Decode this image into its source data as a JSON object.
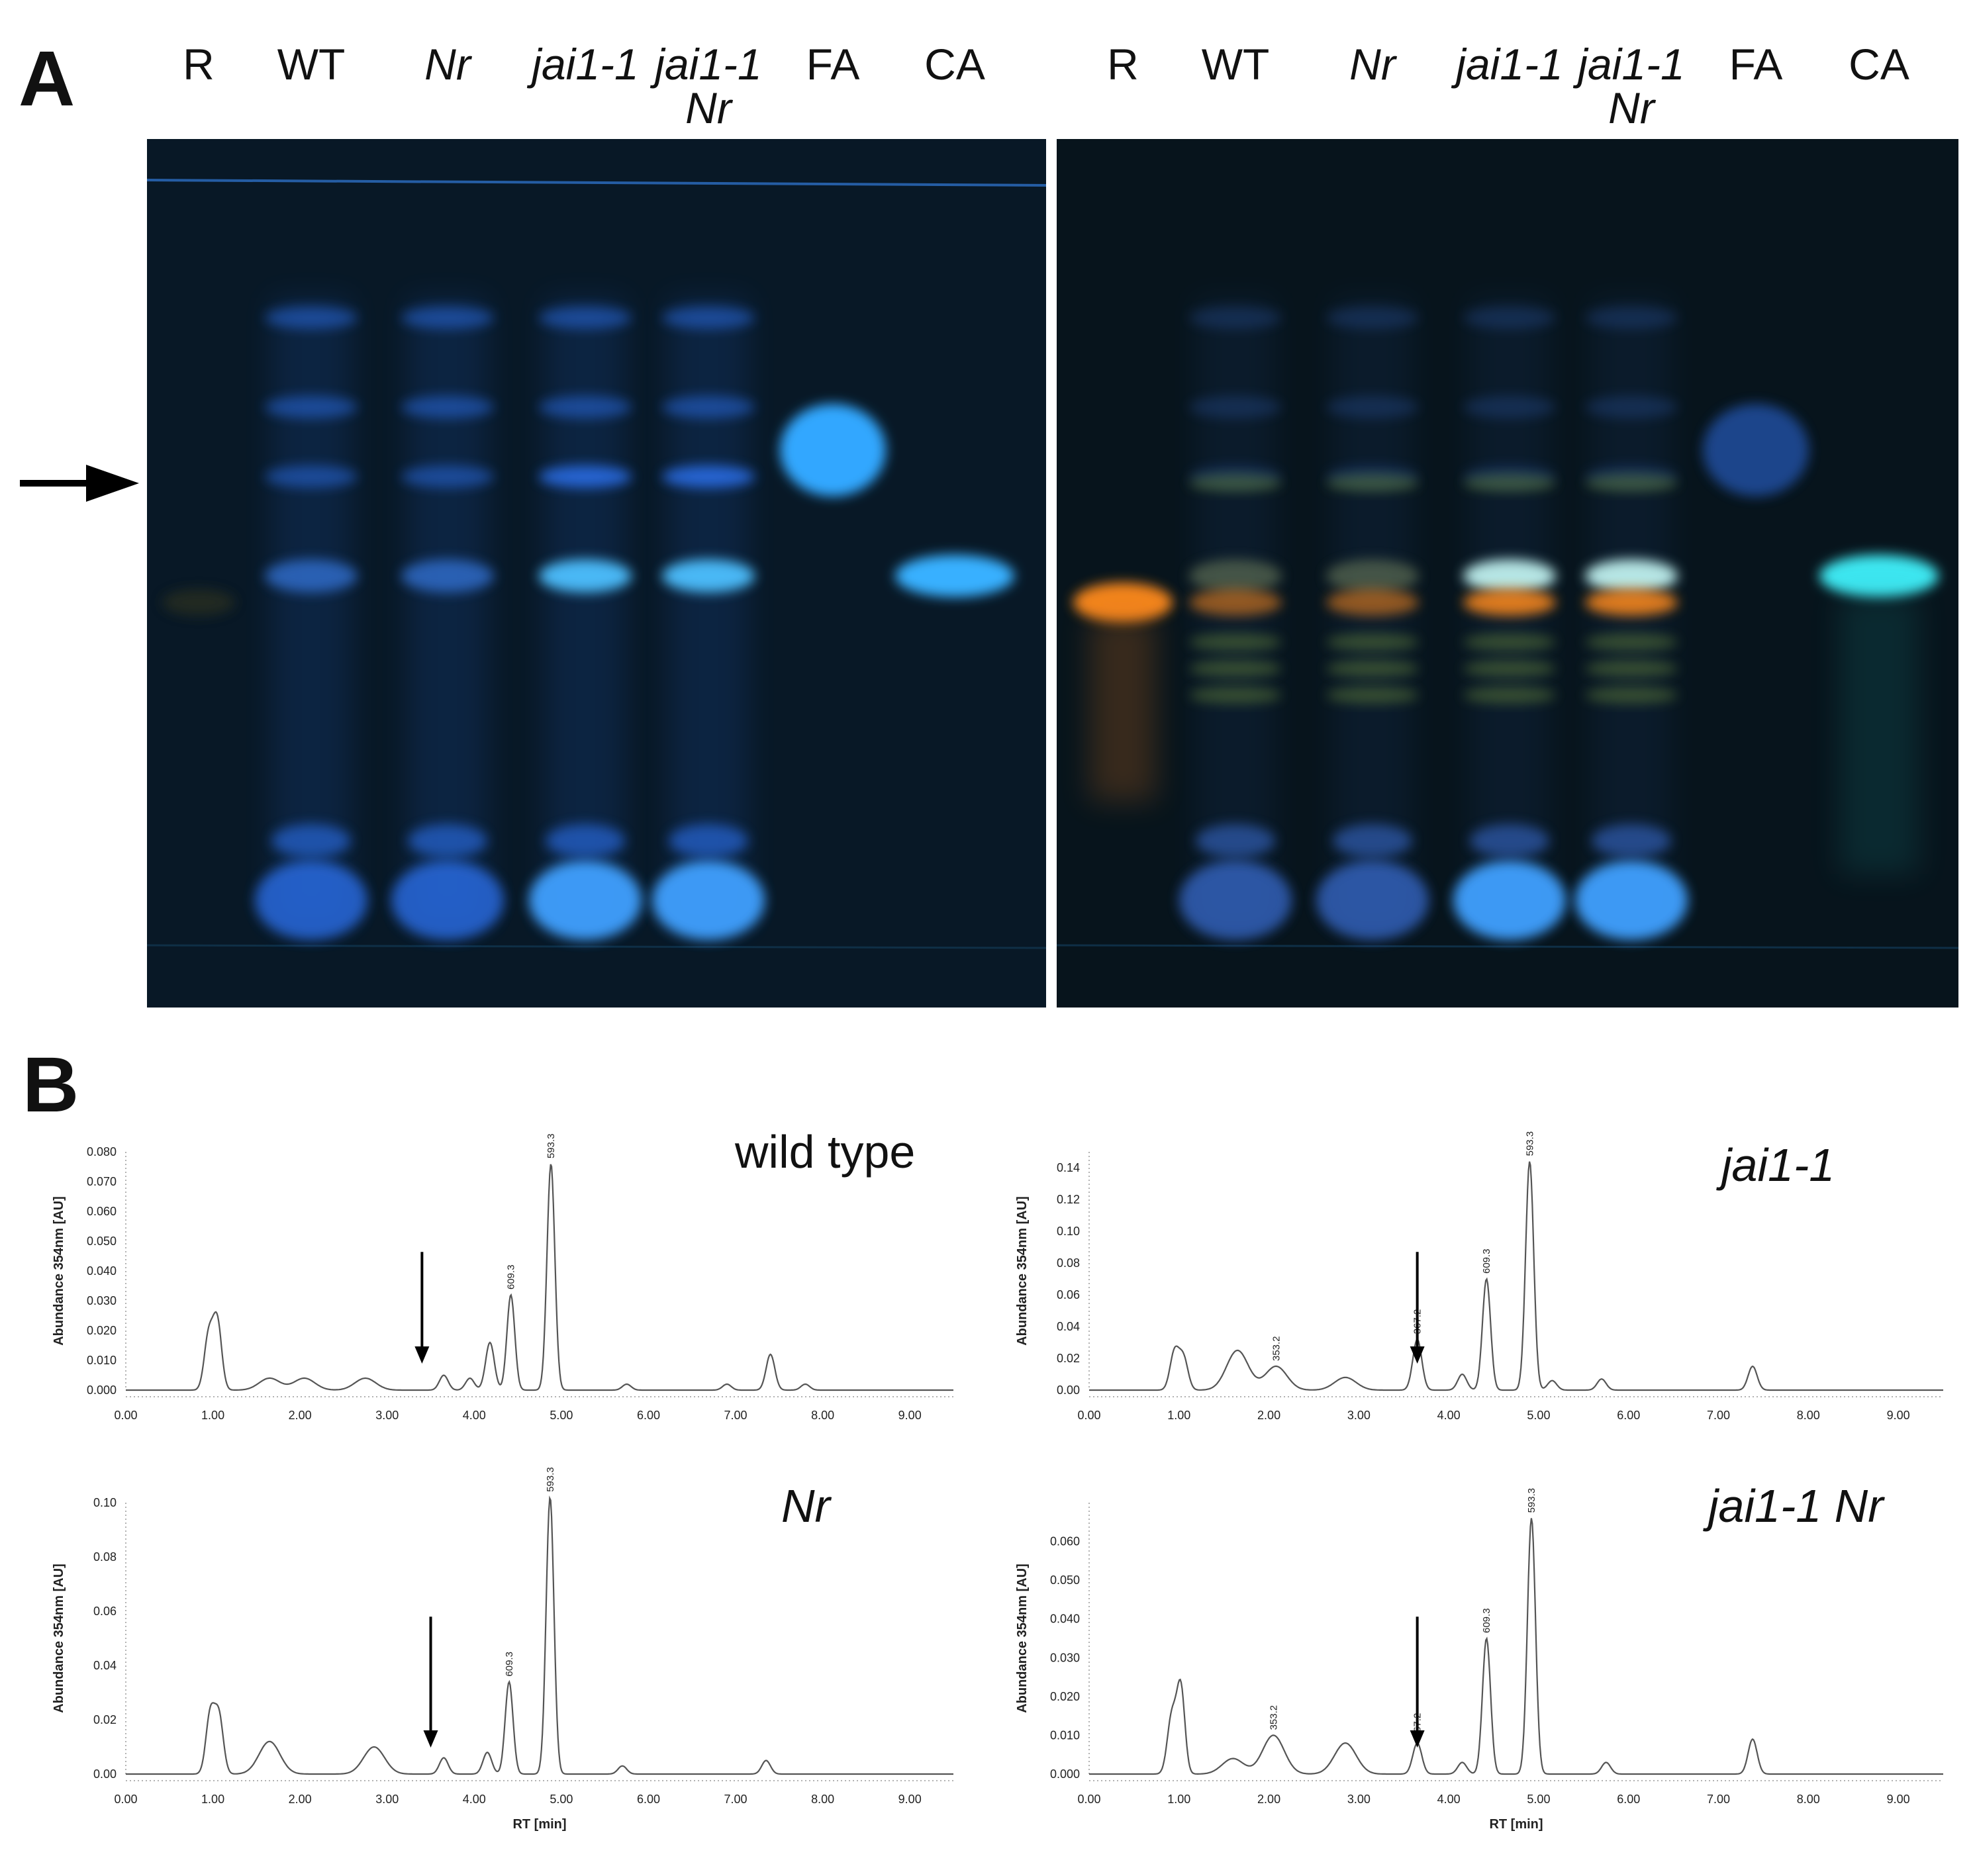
{
  "panel_a": {
    "letter": "A",
    "left_plate": {
      "lanes": [
        {
          "label": "R",
          "italic": false
        },
        {
          "label": "WT",
          "italic": false
        },
        {
          "label": "Nr",
          "italic": true
        },
        {
          "label": "jai1-1",
          "italic": true
        },
        {
          "label": "jai1-1",
          "label2": "Nr",
          "italic": true
        },
        {
          "label": "FA",
          "italic": false
        },
        {
          "label": "CA",
          "italic": false
        }
      ]
    },
    "right_plate": {
      "lanes": [
        {
          "label": "R",
          "italic": false
        },
        {
          "label": "WT",
          "italic": false
        },
        {
          "label": "Nr",
          "italic": true
        },
        {
          "label": "jai1-1",
          "italic": true
        },
        {
          "label": "jai1-1",
          "label2": "Nr",
          "italic": true
        },
        {
          "label": "FA",
          "italic": false
        },
        {
          "label": "CA",
          "italic": false
        }
      ]
    },
    "colors": {
      "plate_bg": "#081622",
      "blue_band": "#2f7fff",
      "cyan_band": "#3ee6f0",
      "orange_band": "#ff8a1a"
    }
  },
  "panel_b": {
    "letter": "B",
    "chart_data": [
      {
        "type": "line",
        "title": "wild type",
        "title_italic": false,
        "xlabel": "",
        "ylabel": "Abundance 354nm [AU]",
        "xlim": [
          0,
          9.5
        ],
        "ylim": [
          0,
          0.08
        ],
        "xticks": [
          "0.00",
          "1.00",
          "2.00",
          "3.00",
          "4.00",
          "5.00",
          "6.00",
          "7.00",
          "8.00",
          "9.00"
        ],
        "yticks": [
          "0.000",
          "0.010",
          "0.020",
          "0.030",
          "0.040",
          "0.050",
          "0.060",
          "0.070",
          "0.080"
        ],
        "peaks": [
          {
            "rt": 0.95,
            "h": 0.018
          },
          {
            "rt": 1.05,
            "h": 0.023
          },
          {
            "rt": 1.65,
            "h": 0.004
          },
          {
            "rt": 2.05,
            "h": 0.004
          },
          {
            "rt": 2.75,
            "h": 0.004
          },
          {
            "rt": 3.65,
            "h": 0.005
          },
          {
            "rt": 3.95,
            "h": 0.004
          },
          {
            "rt": 4.18,
            "h": 0.016
          },
          {
            "rt": 4.42,
            "h": 0.032
          },
          {
            "rt": 4.88,
            "h": 0.076
          },
          {
            "rt": 5.75,
            "h": 0.002
          },
          {
            "rt": 6.9,
            "h": 0.002
          },
          {
            "rt": 7.4,
            "h": 0.012
          },
          {
            "rt": 7.8,
            "h": 0.002
          }
        ],
        "annotations": [
          {
            "rt": 4.42,
            "text": "609.3"
          },
          {
            "rt": 4.88,
            "text": "593.3"
          }
        ],
        "arrow_rt": 3.4
      },
      {
        "type": "line",
        "title": "jai1-1",
        "title_italic": true,
        "xlabel": "",
        "ylabel": "Abundance 354nm [AU]",
        "xlim": [
          0,
          9.5
        ],
        "ylim": [
          0,
          0.15
        ],
        "xticks": [
          "0.00",
          "1.00",
          "2.00",
          "3.00",
          "4.00",
          "5.00",
          "6.00",
          "7.00",
          "8.00",
          "9.00"
        ],
        "yticks": [
          "0.00",
          "0.02",
          "0.04",
          "0.06",
          "0.08",
          "0.10",
          "0.12",
          "0.14"
        ],
        "peaks": [
          {
            "rt": 0.95,
            "h": 0.024
          },
          {
            "rt": 1.05,
            "h": 0.02
          },
          {
            "rt": 1.65,
            "h": 0.025
          },
          {
            "rt": 2.08,
            "h": 0.015
          },
          {
            "rt": 2.85,
            "h": 0.008
          },
          {
            "rt": 3.65,
            "h": 0.032
          },
          {
            "rt": 4.15,
            "h": 0.01
          },
          {
            "rt": 4.42,
            "h": 0.07
          },
          {
            "rt": 4.9,
            "h": 0.144
          },
          {
            "rt": 5.15,
            "h": 0.006
          },
          {
            "rt": 5.7,
            "h": 0.007
          },
          {
            "rt": 7.38,
            "h": 0.015
          }
        ],
        "annotations": [
          {
            "rt": 2.08,
            "text": "353.2"
          },
          {
            "rt": 3.65,
            "text": "367.2"
          },
          {
            "rt": 4.42,
            "text": "609.3"
          },
          {
            "rt": 4.9,
            "text": "593.3"
          }
        ],
        "arrow_rt": 3.65
      },
      {
        "type": "line",
        "title": "Nr",
        "title_italic": true,
        "xlabel": "RT [min]",
        "ylabel": "Abundance 354nm [AU]",
        "xlim": [
          0,
          9.5
        ],
        "ylim": [
          0,
          0.1
        ],
        "xticks": [
          "0.00",
          "1.00",
          "2.00",
          "3.00",
          "4.00",
          "5.00",
          "6.00",
          "7.00",
          "8.00",
          "9.00"
        ],
        "yticks": [
          "0.00",
          "0.02",
          "0.04",
          "0.06",
          "0.08",
          "0.10"
        ],
        "peaks": [
          {
            "rt": 0.97,
            "h": 0.022
          },
          {
            "rt": 1.07,
            "h": 0.021
          },
          {
            "rt": 1.65,
            "h": 0.012
          },
          {
            "rt": 2.85,
            "h": 0.01
          },
          {
            "rt": 3.65,
            "h": 0.006
          },
          {
            "rt": 4.15,
            "h": 0.008
          },
          {
            "rt": 4.4,
            "h": 0.034
          },
          {
            "rt": 4.87,
            "h": 0.102
          },
          {
            "rt": 5.7,
            "h": 0.003
          },
          {
            "rt": 7.35,
            "h": 0.005
          }
        ],
        "annotations": [
          {
            "rt": 4.4,
            "text": "609.3"
          },
          {
            "rt": 4.87,
            "text": "593.3"
          }
        ],
        "arrow_rt": 3.5
      },
      {
        "type": "line",
        "title": "jai1-1 Nr",
        "title_italic": true,
        "xlabel": "RT [min]",
        "ylabel": "Abundance 354nm [AU]",
        "xlim": [
          0,
          9.5
        ],
        "ylim": [
          0,
          0.07
        ],
        "xticks": [
          "0.00",
          "1.00",
          "2.00",
          "3.00",
          "4.00",
          "5.00",
          "6.00",
          "7.00",
          "8.00",
          "9.00"
        ],
        "yticks": [
          "0.000",
          "0.010",
          "0.020",
          "0.030",
          "0.040",
          "0.050",
          "0.060"
        ],
        "peaks": [
          {
            "rt": 0.92,
            "h": 0.015
          },
          {
            "rt": 1.02,
            "h": 0.022
          },
          {
            "rt": 1.6,
            "h": 0.004
          },
          {
            "rt": 2.05,
            "h": 0.01
          },
          {
            "rt": 2.85,
            "h": 0.008
          },
          {
            "rt": 3.65,
            "h": 0.008
          },
          {
            "rt": 4.15,
            "h": 0.003
          },
          {
            "rt": 4.42,
            "h": 0.035
          },
          {
            "rt": 4.92,
            "h": 0.066
          },
          {
            "rt": 5.75,
            "h": 0.003
          },
          {
            "rt": 7.38,
            "h": 0.009
          }
        ],
        "annotations": [
          {
            "rt": 2.05,
            "text": "353.2"
          },
          {
            "rt": 3.65,
            "text": "367.2"
          },
          {
            "rt": 4.42,
            "text": "609.3"
          },
          {
            "rt": 4.92,
            "text": "593.3"
          }
        ],
        "arrow_rt": 3.65
      }
    ]
  }
}
